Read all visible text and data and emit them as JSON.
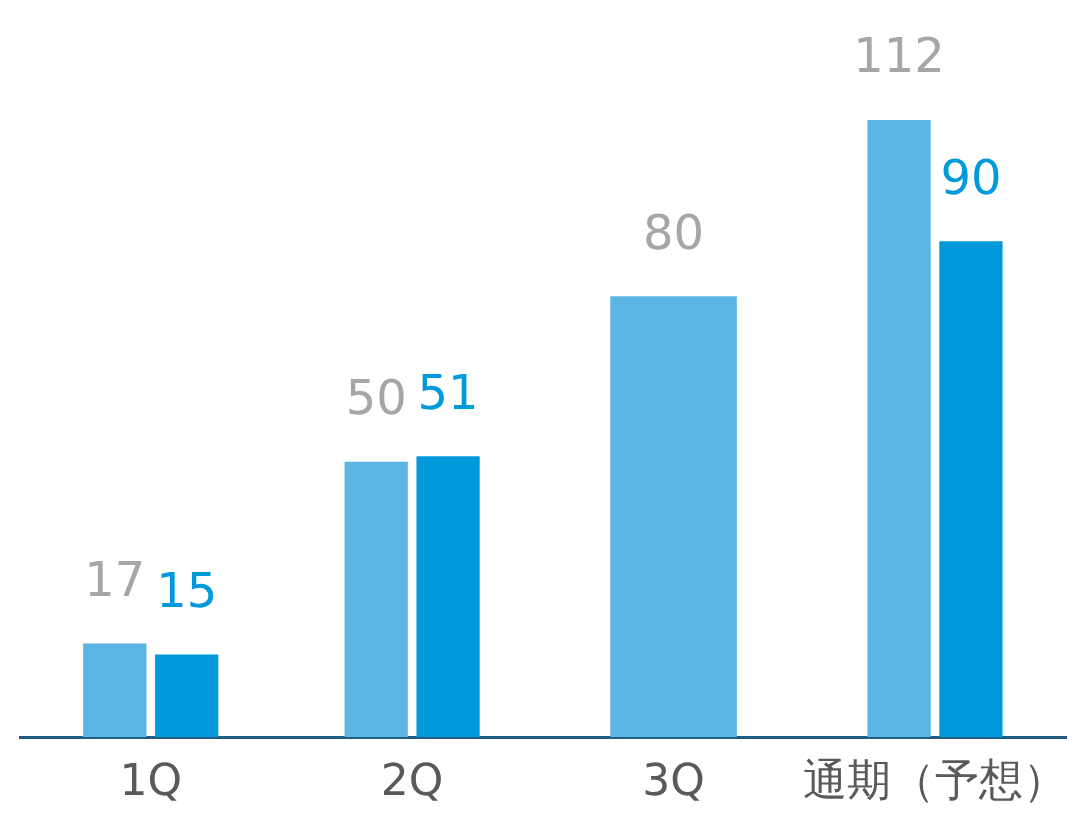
{
  "chart_data": {
    "type": "bar",
    "categories": [
      "1Q",
      "2Q",
      "3Q",
      "通期（予想）"
    ],
    "series": [
      {
        "color": "#5ab4e4",
        "values": [
          17,
          50,
          80,
          112
        ],
        "value_labels": [
          "17",
          "50",
          "80",
          "112"
        ]
      },
      {
        "color": "#009ada",
        "values": [
          15,
          51,
          null,
          90
        ],
        "value_labels": [
          "15",
          "51",
          null,
          "90"
        ]
      }
    ],
    "tick_labels": "x",
    "grid": false,
    "legend": false
  }
}
